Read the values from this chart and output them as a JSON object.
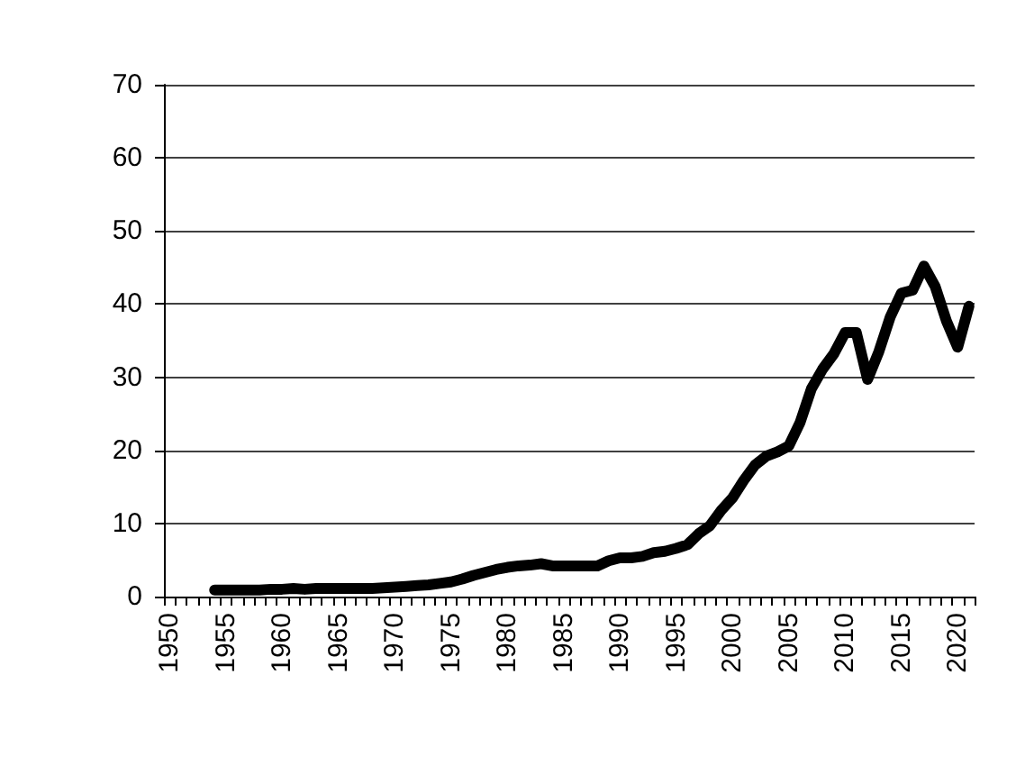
{
  "chart_data": {
    "type": "line",
    "categories": [
      "1950",
      null,
      null,
      null,
      null,
      "1955",
      null,
      null,
      null,
      null,
      "1960",
      null,
      null,
      null,
      null,
      "1965",
      null,
      null,
      null,
      null,
      "1970",
      null,
      null,
      null,
      null,
      "1975",
      null,
      null,
      null,
      null,
      "1980",
      null,
      null,
      null,
      null,
      "1985",
      null,
      null,
      null,
      null,
      "1990",
      null,
      null,
      null,
      null,
      "1995",
      null,
      null,
      null,
      null,
      "2000",
      null,
      null,
      null,
      null,
      "2005",
      null,
      null,
      null,
      null,
      "2010",
      null,
      null,
      null,
      null,
      "2015",
      null,
      null,
      null,
      null,
      "2020",
      null
    ],
    "values": [
      null,
      null,
      null,
      null,
      0.9,
      0.9,
      0.9,
      0.9,
      0.9,
      1.0,
      1.0,
      1.1,
      1.0,
      1.1,
      1.1,
      1.1,
      1.1,
      1.1,
      1.1,
      1.2,
      1.3,
      1.4,
      1.5,
      1.6,
      1.8,
      2.0,
      2.4,
      2.9,
      3.3,
      3.7,
      4.0,
      4.2,
      4.3,
      4.5,
      4.2,
      4.2,
      4.2,
      4.2,
      4.2,
      4.9,
      5.3,
      5.3,
      5.5,
      6.0,
      6.2,
      6.6,
      7.1,
      8.6,
      9.7,
      11.8,
      13.5,
      15.9,
      18.0,
      19.2,
      19.8,
      20.6,
      23.8,
      28.4,
      31.1,
      33.2,
      36.1,
      36.1,
      29.7,
      33.5,
      38.2,
      41.5,
      41.9,
      45.2,
      42.4,
      37.7,
      34.1,
      39.7
    ],
    "color": "#000000",
    "marker": "none",
    "line_style": "solid",
    "ylim": [
      0,
      70
    ],
    "yticks": [
      0,
      10,
      20,
      30,
      40,
      50,
      60,
      70
    ],
    "grid": "y"
  }
}
